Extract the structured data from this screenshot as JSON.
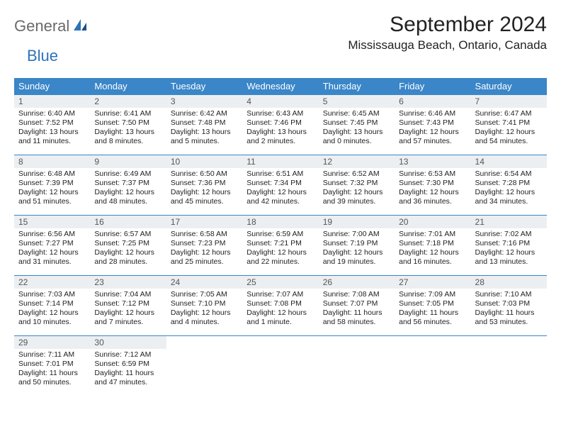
{
  "brand": {
    "part1": "General",
    "part2": "Blue"
  },
  "title": "September 2024",
  "location": "Mississauga Beach, Ontario, Canada",
  "colors": {
    "header_bg": "#3a86c8",
    "header_text": "#ffffff",
    "daynum_bg": "#eceff1",
    "row_border": "#3a86c8",
    "logo_gray": "#6a6a6a",
    "logo_blue": "#2d73b8"
  },
  "dow": [
    "Sunday",
    "Monday",
    "Tuesday",
    "Wednesday",
    "Thursday",
    "Friday",
    "Saturday"
  ],
  "weeks": [
    [
      {
        "n": "1",
        "sr": "Sunrise: 6:40 AM",
        "ss": "Sunset: 7:52 PM",
        "dl": "Daylight: 13 hours and 11 minutes."
      },
      {
        "n": "2",
        "sr": "Sunrise: 6:41 AM",
        "ss": "Sunset: 7:50 PM",
        "dl": "Daylight: 13 hours and 8 minutes."
      },
      {
        "n": "3",
        "sr": "Sunrise: 6:42 AM",
        "ss": "Sunset: 7:48 PM",
        "dl": "Daylight: 13 hours and 5 minutes."
      },
      {
        "n": "4",
        "sr": "Sunrise: 6:43 AM",
        "ss": "Sunset: 7:46 PM",
        "dl": "Daylight: 13 hours and 2 minutes."
      },
      {
        "n": "5",
        "sr": "Sunrise: 6:45 AM",
        "ss": "Sunset: 7:45 PM",
        "dl": "Daylight: 13 hours and 0 minutes."
      },
      {
        "n": "6",
        "sr": "Sunrise: 6:46 AM",
        "ss": "Sunset: 7:43 PM",
        "dl": "Daylight: 12 hours and 57 minutes."
      },
      {
        "n": "7",
        "sr": "Sunrise: 6:47 AM",
        "ss": "Sunset: 7:41 PM",
        "dl": "Daylight: 12 hours and 54 minutes."
      }
    ],
    [
      {
        "n": "8",
        "sr": "Sunrise: 6:48 AM",
        "ss": "Sunset: 7:39 PM",
        "dl": "Daylight: 12 hours and 51 minutes."
      },
      {
        "n": "9",
        "sr": "Sunrise: 6:49 AM",
        "ss": "Sunset: 7:37 PM",
        "dl": "Daylight: 12 hours and 48 minutes."
      },
      {
        "n": "10",
        "sr": "Sunrise: 6:50 AM",
        "ss": "Sunset: 7:36 PM",
        "dl": "Daylight: 12 hours and 45 minutes."
      },
      {
        "n": "11",
        "sr": "Sunrise: 6:51 AM",
        "ss": "Sunset: 7:34 PM",
        "dl": "Daylight: 12 hours and 42 minutes."
      },
      {
        "n": "12",
        "sr": "Sunrise: 6:52 AM",
        "ss": "Sunset: 7:32 PM",
        "dl": "Daylight: 12 hours and 39 minutes."
      },
      {
        "n": "13",
        "sr": "Sunrise: 6:53 AM",
        "ss": "Sunset: 7:30 PM",
        "dl": "Daylight: 12 hours and 36 minutes."
      },
      {
        "n": "14",
        "sr": "Sunrise: 6:54 AM",
        "ss": "Sunset: 7:28 PM",
        "dl": "Daylight: 12 hours and 34 minutes."
      }
    ],
    [
      {
        "n": "15",
        "sr": "Sunrise: 6:56 AM",
        "ss": "Sunset: 7:27 PM",
        "dl": "Daylight: 12 hours and 31 minutes."
      },
      {
        "n": "16",
        "sr": "Sunrise: 6:57 AM",
        "ss": "Sunset: 7:25 PM",
        "dl": "Daylight: 12 hours and 28 minutes."
      },
      {
        "n": "17",
        "sr": "Sunrise: 6:58 AM",
        "ss": "Sunset: 7:23 PM",
        "dl": "Daylight: 12 hours and 25 minutes."
      },
      {
        "n": "18",
        "sr": "Sunrise: 6:59 AM",
        "ss": "Sunset: 7:21 PM",
        "dl": "Daylight: 12 hours and 22 minutes."
      },
      {
        "n": "19",
        "sr": "Sunrise: 7:00 AM",
        "ss": "Sunset: 7:19 PM",
        "dl": "Daylight: 12 hours and 19 minutes."
      },
      {
        "n": "20",
        "sr": "Sunrise: 7:01 AM",
        "ss": "Sunset: 7:18 PM",
        "dl": "Daylight: 12 hours and 16 minutes."
      },
      {
        "n": "21",
        "sr": "Sunrise: 7:02 AM",
        "ss": "Sunset: 7:16 PM",
        "dl": "Daylight: 12 hours and 13 minutes."
      }
    ],
    [
      {
        "n": "22",
        "sr": "Sunrise: 7:03 AM",
        "ss": "Sunset: 7:14 PM",
        "dl": "Daylight: 12 hours and 10 minutes."
      },
      {
        "n": "23",
        "sr": "Sunrise: 7:04 AM",
        "ss": "Sunset: 7:12 PM",
        "dl": "Daylight: 12 hours and 7 minutes."
      },
      {
        "n": "24",
        "sr": "Sunrise: 7:05 AM",
        "ss": "Sunset: 7:10 PM",
        "dl": "Daylight: 12 hours and 4 minutes."
      },
      {
        "n": "25",
        "sr": "Sunrise: 7:07 AM",
        "ss": "Sunset: 7:08 PM",
        "dl": "Daylight: 12 hours and 1 minute."
      },
      {
        "n": "26",
        "sr": "Sunrise: 7:08 AM",
        "ss": "Sunset: 7:07 PM",
        "dl": "Daylight: 11 hours and 58 minutes."
      },
      {
        "n": "27",
        "sr": "Sunrise: 7:09 AM",
        "ss": "Sunset: 7:05 PM",
        "dl": "Daylight: 11 hours and 56 minutes."
      },
      {
        "n": "28",
        "sr": "Sunrise: 7:10 AM",
        "ss": "Sunset: 7:03 PM",
        "dl": "Daylight: 11 hours and 53 minutes."
      }
    ],
    [
      {
        "n": "29",
        "sr": "Sunrise: 7:11 AM",
        "ss": "Sunset: 7:01 PM",
        "dl": "Daylight: 11 hours and 50 minutes."
      },
      {
        "n": "30",
        "sr": "Sunrise: 7:12 AM",
        "ss": "Sunset: 6:59 PM",
        "dl": "Daylight: 11 hours and 47 minutes."
      },
      null,
      null,
      null,
      null,
      null
    ]
  ]
}
